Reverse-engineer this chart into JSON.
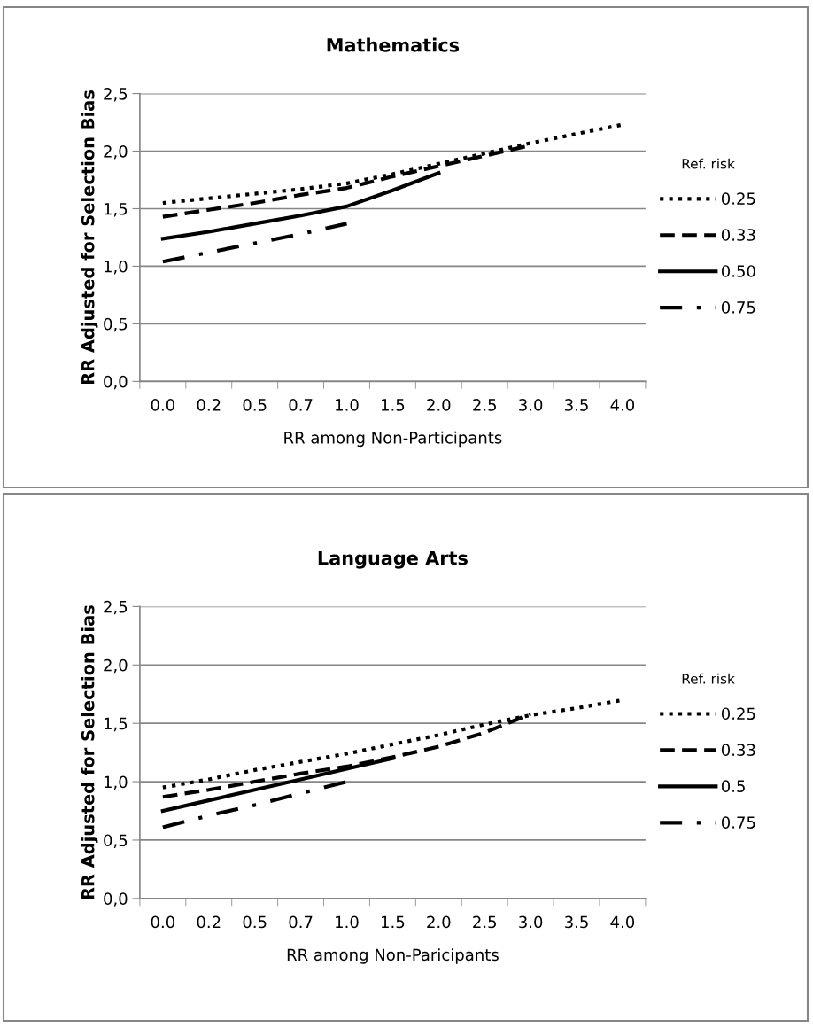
{
  "chart_data": [
    {
      "type": "line",
      "title": "Mathematics",
      "xlabel": "RR among Non-Participants",
      "ylabel": "RR Adjusted for Selection Bias",
      "legend_title": "Ref. risk",
      "categories": [
        "0.0",
        "0.2",
        "0.5",
        "0.7",
        "1.0",
        "1.5",
        "2.0",
        "2.5",
        "3.0",
        "3.5",
        "4.0"
      ],
      "series": [
        {
          "name": "0.25",
          "color": "#000000",
          "line_style": "dotted",
          "values": [
            1.55,
            1.59,
            1.63,
            1.67,
            1.72,
            1.8,
            1.89,
            1.98,
            2.07,
            2.15,
            2.23
          ]
        },
        {
          "name": "0.33",
          "color": "#000000",
          "line_style": "dashed",
          "values": [
            1.43,
            1.49,
            1.55,
            1.62,
            1.68,
            1.78,
            1.87,
            1.96,
            2.05,
            null,
            null
          ]
        },
        {
          "name": "0.50",
          "color": "#000000",
          "line_style": "solid",
          "values": [
            1.24,
            1.3,
            1.37,
            1.44,
            1.52,
            1.66,
            1.81,
            null,
            null,
            null,
            null
          ]
        },
        {
          "name": "0.75",
          "color": "#000000",
          "line_style": "dashdot",
          "values": [
            1.04,
            1.12,
            1.2,
            1.28,
            1.37,
            null,
            null,
            null,
            null,
            null,
            null
          ]
        }
      ],
      "ylim": [
        0,
        2.5
      ],
      "yticks": [
        {
          "value": 0,
          "label": "0,0"
        },
        {
          "value": 0.5,
          "label": "0,5"
        },
        {
          "value": 1.0,
          "label": "1,0"
        },
        {
          "value": 1.5,
          "label": "1,5"
        },
        {
          "value": 2.0,
          "label": "2,0"
        },
        {
          "value": 2.5,
          "label": "2,5"
        }
      ],
      "grid": "y",
      "legend": "right",
      "marker": "none"
    },
    {
      "type": "line",
      "title": "Language Arts",
      "xlabel": "RR among Non-Paricipants",
      "ylabel": "RR Adjusted for Selection Bias",
      "legend_title": "Ref. risk",
      "categories": [
        "0.0",
        "0.2",
        "0.5",
        "0.7",
        "1.0",
        "1.5",
        "2.0",
        "2.5",
        "3.0",
        "3.5",
        "4.0"
      ],
      "series": [
        {
          "name": "0.25",
          "color": "#000000",
          "line_style": "dotted",
          "values": [
            0.95,
            1.02,
            1.1,
            1.17,
            1.24,
            1.32,
            1.4,
            1.49,
            1.57,
            1.63,
            1.7
          ]
        },
        {
          "name": "0.33",
          "color": "#000000",
          "line_style": "dashed",
          "values": [
            0.87,
            0.93,
            1.0,
            1.07,
            1.13,
            1.21,
            1.3,
            1.42,
            1.58,
            null,
            null
          ]
        },
        {
          "name": "0.5",
          "color": "#000000",
          "line_style": "solid",
          "values": [
            0.75,
            0.84,
            0.93,
            1.02,
            1.11,
            1.2,
            null,
            null,
            null,
            null,
            null
          ]
        },
        {
          "name": "0.75",
          "color": "#000000",
          "line_style": "dashdot",
          "values": [
            0.61,
            0.71,
            0.8,
            0.9,
            1.0,
            null,
            null,
            null,
            null,
            null,
            null
          ]
        }
      ],
      "ylim": [
        0,
        2.5
      ],
      "yticks": [
        {
          "value": 0,
          "label": "0,0"
        },
        {
          "value": 0.5,
          "label": "0,5"
        },
        {
          "value": 1.0,
          "label": "1,0"
        },
        {
          "value": 1.5,
          "label": "1,5"
        },
        {
          "value": 2.0,
          "label": "2,0"
        },
        {
          "value": 2.5,
          "label": "2,5"
        }
      ],
      "grid": "y",
      "legend": "right",
      "marker": "none"
    }
  ]
}
